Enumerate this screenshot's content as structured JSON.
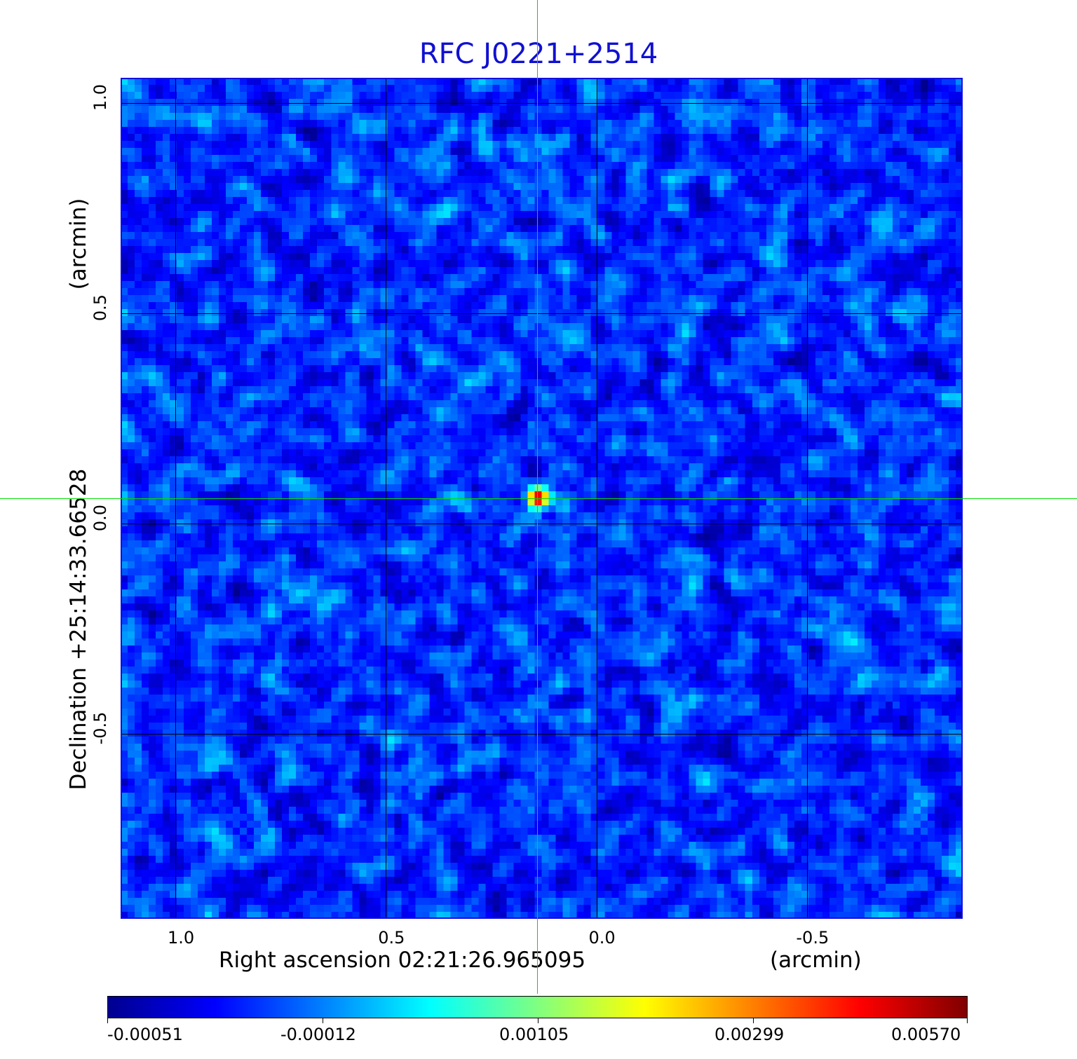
{
  "chart_data": {
    "type": "heatmap",
    "title": "RFC J0221+2514",
    "xlabel": "Right ascension  02:21:26.965095",
    "xlabel_unit": "(arcmin)",
    "ylabel": "Declination  +25:14:33.66528",
    "ylabel_unit": "(arcmin)",
    "x_ticks": [
      "1.0",
      "0.5",
      "0.0",
      "-0.5"
    ],
    "x_tick_values": [
      1.0,
      0.5,
      0.0,
      -0.5
    ],
    "y_ticks": [
      "1.0",
      "0.5",
      "0.0",
      "-0.5"
    ],
    "y_tick_values": [
      1.0,
      0.5,
      0.0,
      -0.5
    ],
    "xlim": [
      1.13,
      -0.87
    ],
    "ylim": [
      -0.94,
      1.06
    ],
    "grid": true,
    "colorscale": "jet",
    "colorbar_ticks": [
      "-0.00051",
      "-0.00012",
      "0.00105",
      "0.00299",
      "0.00570"
    ],
    "colorbar_range": [
      -0.00051,
      0.0057
    ],
    "peak": {
      "x": 0.14,
      "y": 0.06,
      "value": 0.0057
    },
    "crosshair": {
      "x": 0.14,
      "y": 0.06
    }
  }
}
